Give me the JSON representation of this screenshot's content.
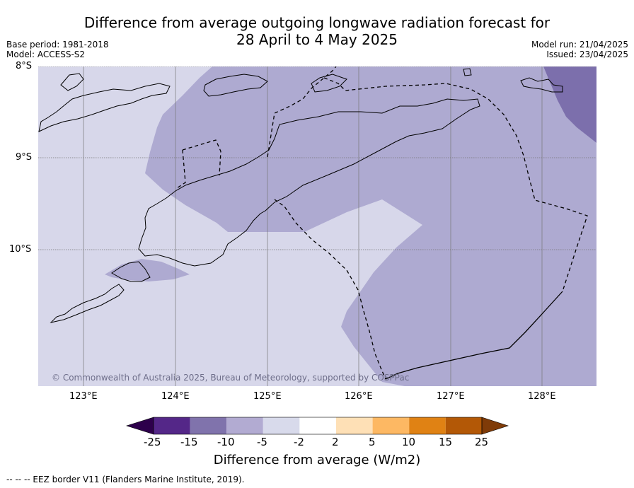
{
  "title_line1": "Difference from average outgoing longwave radiation forecast for",
  "title_line2": "28 April to 4 May 2025",
  "meta": {
    "base_period": "Base period: 1981-2018",
    "model": "Model: ACCESS-S2",
    "model_run": "Model run: 21/04/2025",
    "issued": "Issued: 23/04/2025"
  },
  "map": {
    "lat_labels": [
      "8°S",
      "9°S",
      "10°S"
    ],
    "lon_labels": [
      "123°E",
      "124°E",
      "125°E",
      "126°E",
      "127°E",
      "128°E"
    ],
    "copyright": "© Commonwealth of Australia 2025, Bureau of Meteorology, supported by COSPPac",
    "colors": {
      "ocean_minus2_to_minus5": "#d7d7ea",
      "minus5_to_minus10": "#aeaad1",
      "minus10_to_minus15": "#7c6fac",
      "coastline": "#000000",
      "eez_border": "#000000",
      "gridline": "#777777"
    }
  },
  "colorbar": {
    "tick_labels": [
      "-25",
      "-15",
      "-10",
      "-5",
      "-2",
      "2",
      "5",
      "10",
      "15",
      "25"
    ],
    "colors": [
      "#2d004b",
      "#542788",
      "#8073ac",
      "#b2abd2",
      "#d8daeb",
      "#ffffff",
      "#fee0b6",
      "#fdb863",
      "#e08214",
      "#b35806",
      "#7f3b08"
    ],
    "title": "Difference from average (W/m2)"
  },
  "footnote": "--  --  -- EEZ border V11 (Flanders Marine Institute, 2019)."
}
